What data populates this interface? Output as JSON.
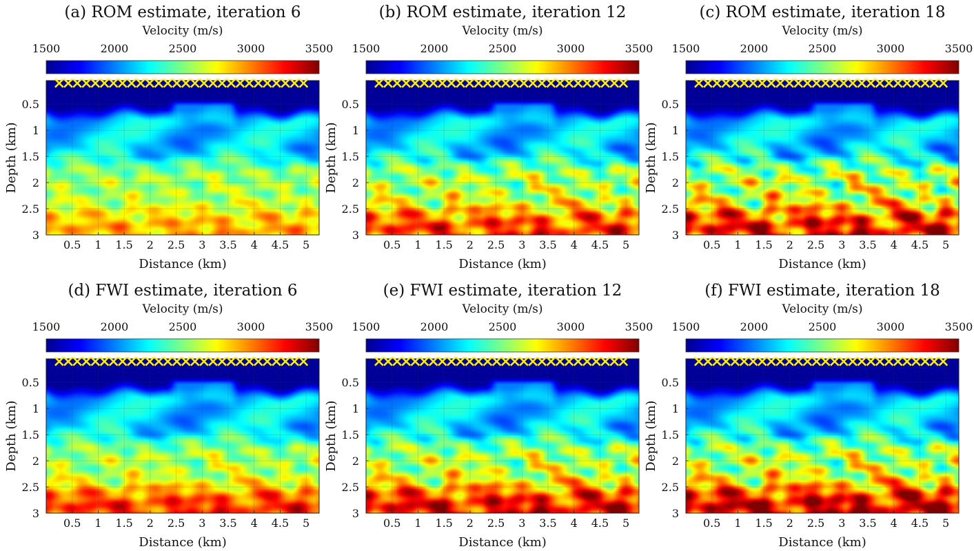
{
  "chart_data": [
    {
      "type": "heatmap",
      "title": "(a) ROM estimate, iteration 6",
      "colorbar": {
        "label": "Velocity (m/s)",
        "range": [
          1500,
          3500
        ],
        "ticks": [
          "1500",
          "2000",
          "2500",
          "3000",
          "3500"
        ],
        "colormap": "jet"
      },
      "xlabel": "Distance (km)",
      "ylabel": "Depth (km)",
      "xlim": [
        0,
        5.25
      ],
      "ylim": [
        3,
        0.05
      ],
      "xticks": [
        "0.5",
        "1",
        "1.5",
        "2",
        "2.5",
        "3",
        "3.5",
        "4",
        "4.5",
        "5"
      ],
      "yticks": [
        "0.5",
        "1",
        "1.5",
        "2",
        "2.5",
        "3"
      ],
      "grid": true,
      "sources": {
        "marker": "x",
        "color": "#ffee00",
        "depth_km": 0.1,
        "x_start_km": 0.25,
        "x_end_km": 4.95,
        "count": 28
      },
      "field": {
        "surface_kms": 1.55,
        "structure": 0.55,
        "deep_layers": 0.25,
        "deep_kms": 2.85
      }
    },
    {
      "type": "heatmap",
      "title": "(b) ROM estimate, iteration 12",
      "colorbar": {
        "label": "Velocity (m/s)",
        "range": [
          1500,
          3500
        ],
        "ticks": [
          "1500",
          "2000",
          "2500",
          "3000",
          "3500"
        ],
        "colormap": "jet"
      },
      "xlabel": "Distance (km)",
      "ylabel": "Depth (km)",
      "xlim": [
        0,
        5.25
      ],
      "ylim": [
        3,
        0.05
      ],
      "xticks": [
        "0.5",
        "1",
        "1.5",
        "2",
        "2.5",
        "3",
        "3.5",
        "4",
        "4.5",
        "5"
      ],
      "yticks": [
        "0.5",
        "1",
        "1.5",
        "2",
        "2.5",
        "3"
      ],
      "grid": true,
      "sources": {
        "marker": "x",
        "color": "#ffee00",
        "depth_km": 0.1,
        "x_start_km": 0.25,
        "x_end_km": 4.95,
        "count": 28
      },
      "field": {
        "surface_kms": 1.55,
        "structure": 0.8,
        "deep_layers": 0.6,
        "deep_kms": 3.0
      }
    },
    {
      "type": "heatmap",
      "title": "(c) ROM estimate, iteration 18",
      "colorbar": {
        "label": "Velocity (m/s)",
        "range": [
          1500,
          3500
        ],
        "ticks": [
          "1500",
          "2000",
          "2500",
          "3000",
          "3500"
        ],
        "colormap": "jet"
      },
      "xlabel": "Distance (km)",
      "ylabel": "Depth (km)",
      "xlim": [
        0,
        5.25
      ],
      "ylim": [
        3,
        0.05
      ],
      "xticks": [
        "0.5",
        "1",
        "1.5",
        "2",
        "2.5",
        "3",
        "3.5",
        "4",
        "4.5",
        "5"
      ],
      "yticks": [
        "0.5",
        "1",
        "1.5",
        "2",
        "2.5",
        "3"
      ],
      "grid": true,
      "sources": {
        "marker": "x",
        "color": "#ffee00",
        "depth_km": 0.1,
        "x_start_km": 0.25,
        "x_end_km": 4.95,
        "count": 28
      },
      "field": {
        "surface_kms": 1.55,
        "structure": 1.0,
        "deep_layers": 0.85,
        "deep_kms": 3.05
      }
    },
    {
      "type": "heatmap",
      "title": "(d) FWI estimate, iteration 6",
      "colorbar": {
        "label": "Velocity (m/s)",
        "range": [
          1500,
          3500
        ],
        "ticks": [
          "1500",
          "2000",
          "2500",
          "3000",
          "3500"
        ],
        "colormap": "jet"
      },
      "xlabel": "Distance (km)",
      "ylabel": "Depth (km)",
      "xlim": [
        0,
        5.25
      ],
      "ylim": [
        3,
        0.05
      ],
      "xticks": [
        "0.5",
        "1",
        "1.5",
        "2",
        "2.5",
        "3",
        "3.5",
        "4",
        "4.5",
        "5"
      ],
      "yticks": [
        "0.5",
        "1",
        "1.5",
        "2",
        "2.5",
        "3"
      ],
      "grid": true,
      "sources": {
        "marker": "x",
        "color": "#ffee00",
        "depth_km": 0.1,
        "x_start_km": 0.25,
        "x_end_km": 4.95,
        "count": 28
      },
      "field": {
        "surface_kms": 1.55,
        "structure": 0.6,
        "deep_layers": 0.5,
        "deep_kms": 3.05
      }
    },
    {
      "type": "heatmap",
      "title": "(e) FWI estimate, iteration 12",
      "colorbar": {
        "label": "Velocity (m/s)",
        "range": [
          1500,
          3500
        ],
        "ticks": [
          "1500",
          "2000",
          "2500",
          "3000",
          "3500"
        ],
        "colormap": "jet"
      },
      "xlabel": "Distance (km)",
      "ylabel": "Depth (km)",
      "xlim": [
        0,
        5.25
      ],
      "ylim": [
        3,
        0.05
      ],
      "xticks": [
        "0.5",
        "1",
        "1.5",
        "2",
        "2.5",
        "3",
        "3.5",
        "4",
        "4.5",
        "5"
      ],
      "yticks": [
        "0.5",
        "1",
        "1.5",
        "2",
        "2.5",
        "3"
      ],
      "grid": true,
      "sources": {
        "marker": "x",
        "color": "#ffee00",
        "depth_km": 0.1,
        "x_start_km": 0.25,
        "x_end_km": 4.95,
        "count": 28
      },
      "field": {
        "surface_kms": 1.55,
        "structure": 0.8,
        "deep_layers": 0.75,
        "deep_kms": 3.1
      }
    },
    {
      "type": "heatmap",
      "title": "(f) FWI estimate, iteration 18",
      "colorbar": {
        "label": "Velocity (m/s)",
        "range": [
          1500,
          3500
        ],
        "ticks": [
          "1500",
          "2000",
          "2500",
          "3000",
          "3500"
        ],
        "colormap": "jet"
      },
      "xlabel": "Distance (km)",
      "ylabel": "Depth (km)",
      "xlim": [
        0,
        5.25
      ],
      "ylim": [
        3,
        0.05
      ],
      "xticks": [
        "0.5",
        "1",
        "1.5",
        "2",
        "2.5",
        "3",
        "3.5",
        "4",
        "4.5",
        "5"
      ],
      "yticks": [
        "0.5",
        "1",
        "1.5",
        "2",
        "2.5",
        "3"
      ],
      "grid": true,
      "sources": {
        "marker": "x",
        "color": "#ffee00",
        "depth_km": 0.1,
        "x_start_km": 0.25,
        "x_end_km": 4.95,
        "count": 28
      },
      "field": {
        "surface_kms": 1.55,
        "structure": 0.9,
        "deep_layers": 0.85,
        "deep_kms": 3.15
      }
    }
  ]
}
